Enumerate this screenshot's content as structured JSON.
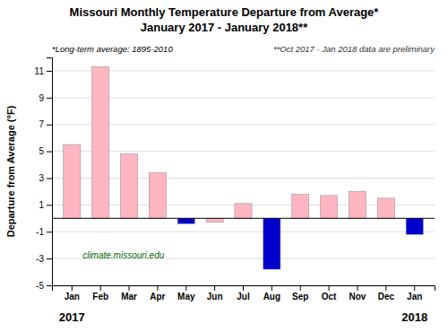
{
  "chart_data": {
    "type": "bar",
    "title": "Missouri Monthly Temperature Departure from Average*",
    "subtitle": "January 2017 - January 2018**",
    "y_label": "Departure from Average (°F)",
    "categories": [
      "Jan",
      "Feb",
      "Mar",
      "Apr",
      "May",
      "Jun",
      "Jul",
      "Aug",
      "Sep",
      "Oct",
      "Nov",
      "Dec",
      "Jan"
    ],
    "values": [
      5.5,
      11.3,
      4.8,
      3.4,
      -0.4,
      -0.3,
      1.1,
      -3.8,
      1.8,
      1.7,
      2.0,
      1.5,
      -1.2
    ],
    "colors": [
      "#FFB6C1",
      "#FFB6C1",
      "#FFB6C1",
      "#FFB6C1",
      "#0000CC",
      "#FFB6C1",
      "#FFB6C1",
      "#0000CC",
      "#FFB6C1",
      "#FFB6C1",
      "#FFB6C1",
      "#FFB6C1",
      "#0000CC"
    ],
    "ylim": [
      -5.0,
      12.0
    ],
    "yticks": [
      -5,
      -3,
      -1,
      1,
      3,
      5,
      7,
      9,
      11
    ],
    "grid": true,
    "annotations": [
      {
        "text": "2017",
        "x": 0
      },
      {
        "text": "2018",
        "x": 12
      },
      {
        "text": "*Long-term average: 1895-2010"
      },
      {
        "text": "**Oct 2017 - Jan 2018 data are preliminary"
      },
      {
        "text": "climate.missouri.edu"
      }
    ]
  }
}
